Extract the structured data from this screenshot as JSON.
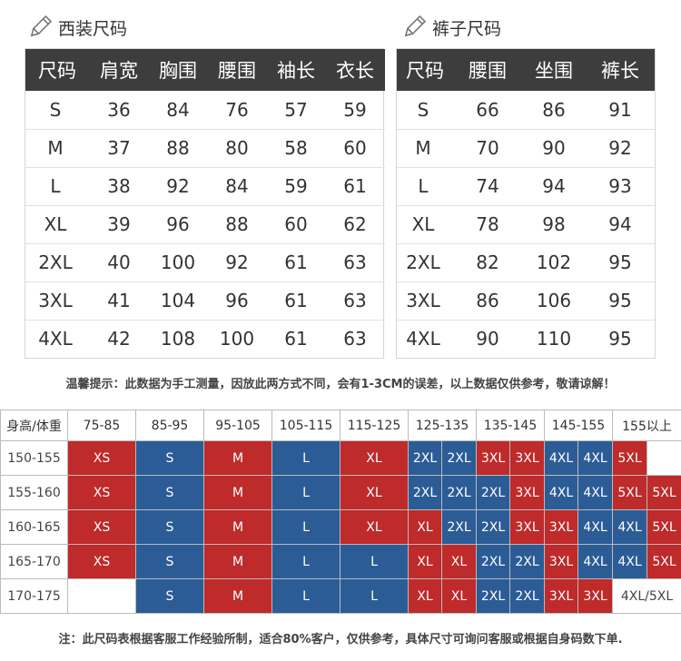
{
  "suit": {
    "title": "西装尺码",
    "headers": [
      "尺码",
      "肩宽",
      "胸围",
      "腰围",
      "袖长",
      "衣长"
    ],
    "rows": [
      [
        "S",
        "36",
        "84",
        "76",
        "57",
        "59"
      ],
      [
        "M",
        "37",
        "88",
        "80",
        "58",
        "60"
      ],
      [
        "L",
        "38",
        "92",
        "84",
        "59",
        "61"
      ],
      [
        "XL",
        "39",
        "96",
        "88",
        "60",
        "62"
      ],
      [
        "2XL",
        "40",
        "100",
        "92",
        "61",
        "63"
      ],
      [
        "3XL",
        "41",
        "104",
        "96",
        "61",
        "63"
      ],
      [
        "4XL",
        "42",
        "108",
        "100",
        "61",
        "63"
      ]
    ]
  },
  "pants": {
    "title": "裤子尺码",
    "headers": [
      "尺码",
      "腰围",
      "坐围",
      "裤长"
    ],
    "rows": [
      [
        "S",
        "66",
        "86",
        "91"
      ],
      [
        "M",
        "70",
        "90",
        "92"
      ],
      [
        "L",
        "74",
        "94",
        "93"
      ],
      [
        "XL",
        "78",
        "98",
        "94"
      ],
      [
        "2XL",
        "82",
        "102",
        "95"
      ],
      [
        "3XL",
        "86",
        "106",
        "95"
      ],
      [
        "4XL",
        "90",
        "110",
        "95"
      ]
    ]
  },
  "tip": "温馨提示：此数据为手工测量，因放此两方式不同，会有1-3CM的误差，以上数据仅供参考，敬请谅解！",
  "reference": {
    "corner": "身高/体重",
    "weights": [
      "75-85",
      "85-95",
      "95-105",
      "105-115",
      "115-125",
      "125-135",
      "135-145",
      "145-155",
      "155以上"
    ],
    "rows": [
      {
        "height": "150-155",
        "cells": [
          {
            "t": "XS",
            "c": "r",
            "s": 2
          },
          {
            "t": "S",
            "c": "b",
            "s": 2
          },
          {
            "t": "M",
            "c": "r",
            "s": 2
          },
          {
            "t": "L",
            "c": "b",
            "s": 2
          },
          {
            "t": "XL",
            "c": "r",
            "s": 2
          },
          {
            "t": "2XL",
            "c": "b",
            "s": 1
          },
          {
            "t": "2XL",
            "c": "b",
            "s": 1
          },
          {
            "t": "3XL",
            "c": "r",
            "s": 1
          },
          {
            "t": "3XL",
            "c": "r",
            "s": 1
          },
          {
            "t": "4XL",
            "c": "b",
            "s": 1
          },
          {
            "t": "4XL",
            "c": "b",
            "s": 1
          },
          {
            "t": "5XL",
            "c": "r",
            "s": 1
          },
          {
            "t": "",
            "c": "w",
            "s": 1
          }
        ]
      },
      {
        "height": "155-160",
        "cells": [
          {
            "t": "XS",
            "c": "r",
            "s": 2
          },
          {
            "t": "S",
            "c": "b",
            "s": 2
          },
          {
            "t": "M",
            "c": "r",
            "s": 2
          },
          {
            "t": "L",
            "c": "b",
            "s": 2
          },
          {
            "t": "XL",
            "c": "r",
            "s": 2
          },
          {
            "t": "2XL",
            "c": "b",
            "s": 1
          },
          {
            "t": "2XL",
            "c": "b",
            "s": 1
          },
          {
            "t": "2XL",
            "c": "b",
            "s": 1
          },
          {
            "t": "3XL",
            "c": "r",
            "s": 1
          },
          {
            "t": "4XL",
            "c": "b",
            "s": 1
          },
          {
            "t": "4XL",
            "c": "b",
            "s": 1
          },
          {
            "t": "5XL",
            "c": "r",
            "s": 1
          },
          {
            "t": "5XL",
            "c": "r",
            "s": 1
          }
        ]
      },
      {
        "height": "160-165",
        "cells": [
          {
            "t": "XS",
            "c": "r",
            "s": 2
          },
          {
            "t": "S",
            "c": "b",
            "s": 2
          },
          {
            "t": "M",
            "c": "r",
            "s": 2
          },
          {
            "t": "L",
            "c": "b",
            "s": 2
          },
          {
            "t": "XL",
            "c": "r",
            "s": 2
          },
          {
            "t": "XL",
            "c": "r",
            "s": 1
          },
          {
            "t": "2XL",
            "c": "b",
            "s": 1
          },
          {
            "t": "2XL",
            "c": "b",
            "s": 1
          },
          {
            "t": "3XL",
            "c": "r",
            "s": 1
          },
          {
            "t": "3XL",
            "c": "r",
            "s": 1
          },
          {
            "t": "4XL",
            "c": "b",
            "s": 1
          },
          {
            "t": "4XL",
            "c": "b",
            "s": 1
          },
          {
            "t": "5XL",
            "c": "r",
            "s": 1
          }
        ]
      },
      {
        "height": "165-170",
        "cells": [
          {
            "t": "XS",
            "c": "r",
            "s": 2
          },
          {
            "t": "S",
            "c": "b",
            "s": 2
          },
          {
            "t": "M",
            "c": "r",
            "s": 2
          },
          {
            "t": "L",
            "c": "b",
            "s": 2
          },
          {
            "t": "L",
            "c": "b",
            "s": 2
          },
          {
            "t": "XL",
            "c": "r",
            "s": 1
          },
          {
            "t": "XL",
            "c": "r",
            "s": 1
          },
          {
            "t": "2XL",
            "c": "b",
            "s": 1
          },
          {
            "t": "2XL",
            "c": "b",
            "s": 1
          },
          {
            "t": "3XL",
            "c": "r",
            "s": 1
          },
          {
            "t": "4XL",
            "c": "b",
            "s": 1
          },
          {
            "t": "4XL",
            "c": "b",
            "s": 1
          },
          {
            "t": "5XL",
            "c": "r",
            "s": 1
          }
        ]
      },
      {
        "height": "170-175",
        "cells": [
          {
            "t": "",
            "c": "w",
            "s": 2
          },
          {
            "t": "S",
            "c": "b",
            "s": 2
          },
          {
            "t": "M",
            "c": "r",
            "s": 2
          },
          {
            "t": "L",
            "c": "b",
            "s": 2
          },
          {
            "t": "L",
            "c": "b",
            "s": 2
          },
          {
            "t": "XL",
            "c": "r",
            "s": 1
          },
          {
            "t": "XL",
            "c": "r",
            "s": 1
          },
          {
            "t": "2XL",
            "c": "b",
            "s": 1
          },
          {
            "t": "2XL",
            "c": "b",
            "s": 1
          },
          {
            "t": "3XL",
            "c": "r",
            "s": 1
          },
          {
            "t": "3XL",
            "c": "r",
            "s": 1
          },
          {
            "t": "4XL/5XL",
            "c": "w",
            "s": 2
          }
        ]
      }
    ]
  },
  "note": "注：此尺码表根据客服工作经验所制，适合80%客户，仅供参考，具体尺寸可询问客服或根据自身码数下单.",
  "colors": {
    "header_bg": "#3d3d3d",
    "red": "#bf2a2a",
    "blue": "#2b5c96"
  },
  "icons": {
    "section": "pencil-icon"
  }
}
